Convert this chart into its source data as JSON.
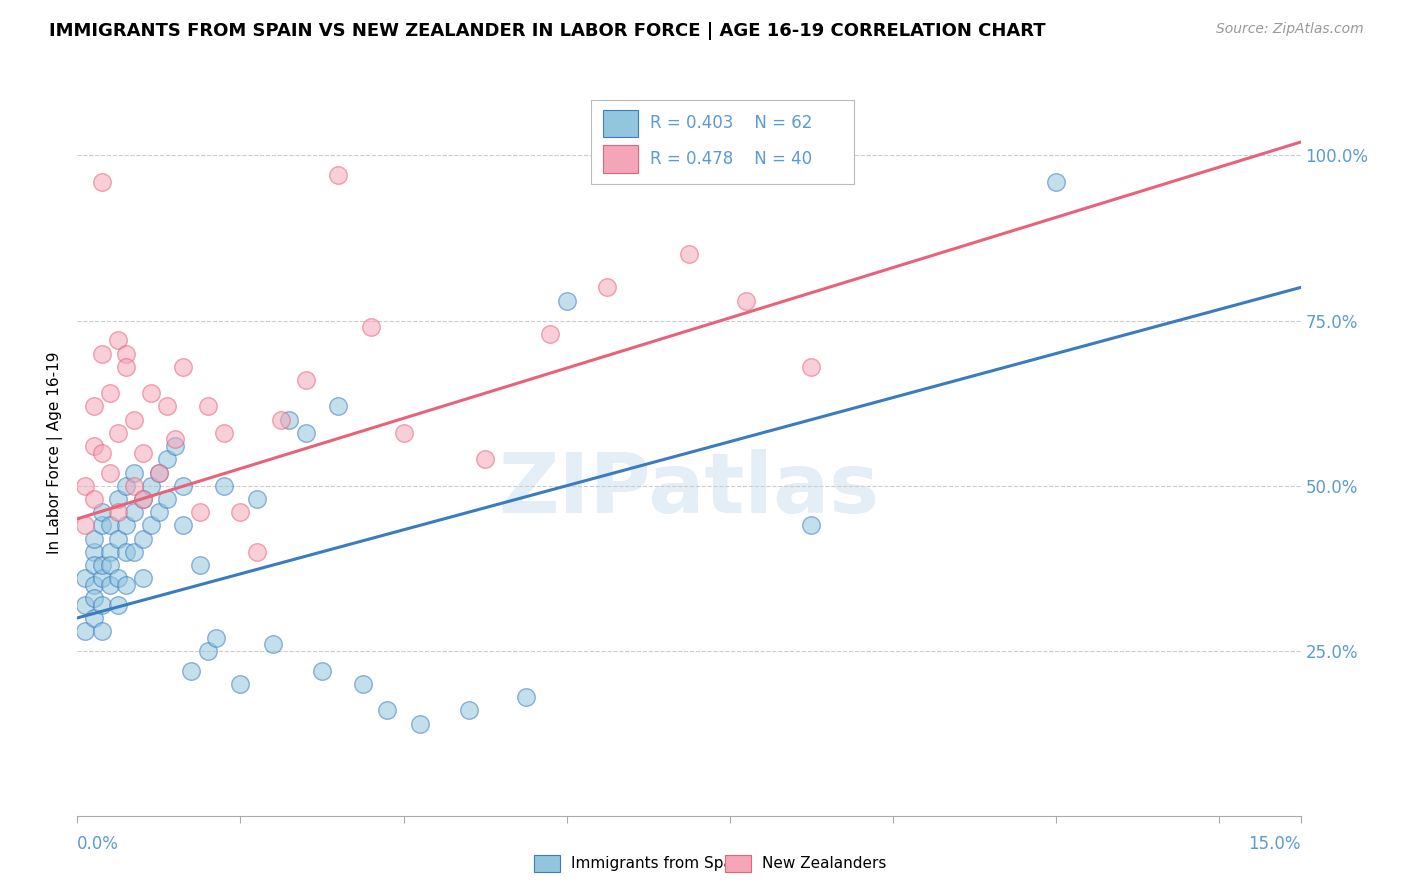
{
  "title": "IMMIGRANTS FROM SPAIN VS NEW ZEALANDER IN LABOR FORCE | AGE 16-19 CORRELATION CHART",
  "source": "Source: ZipAtlas.com",
  "ylabel": "In Labor Force | Age 16-19",
  "y_ticks": [
    0.25,
    0.5,
    0.75,
    1.0
  ],
  "y_tick_labels": [
    "25.0%",
    "50.0%",
    "75.0%",
    "100.0%"
  ],
  "xlim": [
    0.0,
    0.15
  ],
  "ylim": [
    0.0,
    1.1
  ],
  "legend_r1": "R = 0.403",
  "legend_n1": "N = 62",
  "legend_r2": "R = 0.478",
  "legend_n2": "N = 40",
  "color_blue": "#92c5de",
  "color_pink": "#f4a6b8",
  "color_blue_line": "#3b7bbf",
  "color_pink_line": "#e8627a",
  "color_text_blue": "#5b9bd5",
  "watermark": "ZIPatlas",
  "blue_line_x0": 0.0,
  "blue_line_y0": 0.3,
  "blue_line_x1": 0.15,
  "blue_line_y1": 0.8,
  "pink_line_x0": 0.0,
  "pink_line_y0": 0.45,
  "pink_line_x1": 0.15,
  "pink_line_y1": 1.02,
  "blue_scatter_x": [
    0.001,
    0.001,
    0.001,
    0.002,
    0.002,
    0.002,
    0.002,
    0.002,
    0.002,
    0.003,
    0.003,
    0.003,
    0.003,
    0.003,
    0.003,
    0.004,
    0.004,
    0.004,
    0.004,
    0.005,
    0.005,
    0.005,
    0.005,
    0.006,
    0.006,
    0.006,
    0.006,
    0.007,
    0.007,
    0.007,
    0.008,
    0.008,
    0.008,
    0.009,
    0.009,
    0.01,
    0.01,
    0.011,
    0.011,
    0.012,
    0.013,
    0.013,
    0.014,
    0.015,
    0.016,
    0.017,
    0.018,
    0.02,
    0.022,
    0.024,
    0.026,
    0.028,
    0.03,
    0.032,
    0.035,
    0.038,
    0.042,
    0.048,
    0.055,
    0.06,
    0.09,
    0.12
  ],
  "blue_scatter_y": [
    0.32,
    0.36,
    0.28,
    0.35,
    0.4,
    0.3,
    0.38,
    0.33,
    0.42,
    0.36,
    0.44,
    0.38,
    0.32,
    0.46,
    0.28,
    0.4,
    0.35,
    0.44,
    0.38,
    0.42,
    0.36,
    0.48,
    0.32,
    0.44,
    0.4,
    0.5,
    0.35,
    0.46,
    0.4,
    0.52,
    0.42,
    0.48,
    0.36,
    0.5,
    0.44,
    0.52,
    0.46,
    0.54,
    0.48,
    0.56,
    0.5,
    0.44,
    0.22,
    0.38,
    0.25,
    0.27,
    0.5,
    0.2,
    0.48,
    0.26,
    0.6,
    0.58,
    0.22,
    0.62,
    0.2,
    0.16,
    0.14,
    0.16,
    0.18,
    0.78,
    0.44,
    0.96
  ],
  "pink_scatter_x": [
    0.001,
    0.001,
    0.002,
    0.002,
    0.002,
    0.003,
    0.003,
    0.003,
    0.004,
    0.004,
    0.005,
    0.005,
    0.005,
    0.006,
    0.006,
    0.007,
    0.007,
    0.008,
    0.008,
    0.009,
    0.01,
    0.011,
    0.012,
    0.013,
    0.015,
    0.016,
    0.018,
    0.02,
    0.022,
    0.025,
    0.028,
    0.032,
    0.036,
    0.04,
    0.05,
    0.058,
    0.065,
    0.075,
    0.082,
    0.09
  ],
  "pink_scatter_y": [
    0.5,
    0.44,
    0.56,
    0.48,
    0.62,
    0.7,
    0.55,
    0.96,
    0.64,
    0.52,
    0.46,
    0.58,
    0.72,
    0.7,
    0.68,
    0.5,
    0.6,
    0.55,
    0.48,
    0.64,
    0.52,
    0.62,
    0.57,
    0.68,
    0.46,
    0.62,
    0.58,
    0.46,
    0.4,
    0.6,
    0.66,
    0.97,
    0.74,
    0.58,
    0.54,
    0.73,
    0.8,
    0.85,
    0.78,
    0.68
  ]
}
